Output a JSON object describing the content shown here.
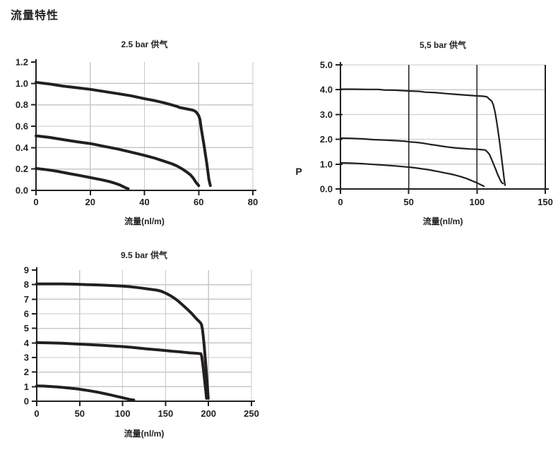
{
  "page_title": "流量特性",
  "colors": {
    "line": "#231f20",
    "axis": "#231f20",
    "grid": "#c8c8c8",
    "text": "#231f20",
    "background": "#ffffff"
  },
  "chart_data": [
    {
      "type": "line",
      "title": "2.5 bar 供气",
      "xlabel": "流量(nl/m)",
      "ylabel": "",
      "xlim": [
        0,
        80
      ],
      "ylim": [
        0,
        1.2
      ],
      "xticks": [
        0,
        20,
        40,
        60,
        80
      ],
      "xtick_labels": [
        "0",
        "20",
        "40",
        "60",
        "80"
      ],
      "yticks": [
        0,
        0.2,
        0.4,
        0.6,
        0.8,
        1.0,
        1.2
      ],
      "ytick_labels": [
        "0.0",
        "0.2",
        "0.4",
        "0.6",
        "0.8",
        "1.0",
        "1.2"
      ],
      "grid": true,
      "vgrid": "light",
      "top_gridline": false,
      "legend": "none",
      "line_width": 4,
      "series": [
        {
          "name": "upper-curve",
          "points": [
            [
              0,
              1.01
            ],
            [
              5,
              0.995
            ],
            [
              10,
              0.975
            ],
            [
              15,
              0.96
            ],
            [
              20,
              0.945
            ],
            [
              25,
              0.925
            ],
            [
              30,
              0.905
            ],
            [
              35,
              0.885
            ],
            [
              40,
              0.858
            ],
            [
              44,
              0.838
            ],
            [
              47,
              0.82
            ],
            [
              50,
              0.8
            ],
            [
              52,
              0.785
            ],
            [
              53,
              0.775
            ],
            [
              55,
              0.765
            ],
            [
              57,
              0.755
            ],
            [
              58,
              0.75
            ],
            [
              59,
              0.735
            ],
            [
              60,
              0.7
            ],
            [
              60.5,
              0.66
            ],
            [
              61,
              0.57
            ],
            [
              62,
              0.42
            ],
            [
              63,
              0.25
            ],
            [
              63.8,
              0.1
            ],
            [
              64.3,
              0.045
            ]
          ]
        },
        {
          "name": "middle-curve",
          "points": [
            [
              0,
              0.51
            ],
            [
              5,
              0.495
            ],
            [
              10,
              0.475
            ],
            [
              15,
              0.455
            ],
            [
              20,
              0.438
            ],
            [
              25,
              0.413
            ],
            [
              30,
              0.388
            ],
            [
              35,
              0.358
            ],
            [
              40,
              0.328
            ],
            [
              44,
              0.3
            ],
            [
              47,
              0.275
            ],
            [
              50,
              0.25
            ],
            [
              52,
              0.228
            ],
            [
              54,
              0.2
            ],
            [
              56,
              0.165
            ],
            [
              57,
              0.145
            ],
            [
              58,
              0.115
            ],
            [
              59,
              0.075
            ],
            [
              60,
              0.045
            ]
          ]
        },
        {
          "name": "lower-curve",
          "points": [
            [
              0,
              0.205
            ],
            [
              4,
              0.193
            ],
            [
              8,
              0.178
            ],
            [
              12,
              0.158
            ],
            [
              16,
              0.14
            ],
            [
              20,
              0.12
            ],
            [
              24,
              0.1
            ],
            [
              27,
              0.083
            ],
            [
              29,
              0.068
            ],
            [
              31,
              0.05
            ],
            [
              33,
              0.025
            ],
            [
              34,
              0.015
            ]
          ]
        }
      ]
    },
    {
      "type": "line",
      "title": "5,5 bar 供气",
      "xlabel": "流量(nl/m)",
      "ylabel": "P",
      "xlim": [
        0,
        150
      ],
      "ylim": [
        0,
        5
      ],
      "xticks": [
        0,
        50,
        100,
        150
      ],
      "xtick_labels": [
        "0",
        "50",
        "100",
        "150"
      ],
      "yticks": [
        0,
        1,
        2,
        3,
        4,
        5
      ],
      "ytick_labels": [
        "0.0",
        "1.0",
        "2.0",
        "3.0",
        "4.0",
        "5.0"
      ],
      "grid": true,
      "vgrid": "dark",
      "top_gridline": true,
      "legend": "none",
      "line_width": 2.2,
      "series": [
        {
          "name": "upper-curve",
          "points": [
            [
              0,
              4.02
            ],
            [
              10,
              4.02
            ],
            [
              20,
              4.01
            ],
            [
              28,
              4.01
            ],
            [
              32,
              3.99
            ],
            [
              40,
              3.98
            ],
            [
              50,
              3.95
            ],
            [
              58,
              3.93
            ],
            [
              62,
              3.9
            ],
            [
              70,
              3.88
            ],
            [
              78,
              3.84
            ],
            [
              85,
              3.81
            ],
            [
              92,
              3.78
            ],
            [
              100,
              3.75
            ],
            [
              104,
              3.74
            ],
            [
              107,
              3.72
            ],
            [
              108,
              3.68
            ],
            [
              109,
              3.62
            ],
            [
              110,
              3.58
            ],
            [
              111,
              3.52
            ],
            [
              112,
              3.38
            ],
            [
              113,
              3.15
            ],
            [
              114,
              2.85
            ],
            [
              115,
              2.5
            ],
            [
              116,
              2.1
            ],
            [
              117,
              1.7
            ],
            [
              118,
              1.25
            ],
            [
              119,
              0.8
            ],
            [
              120,
              0.35
            ],
            [
              120.5,
              0.15
            ]
          ]
        },
        {
          "name": "middle-curve",
          "points": [
            [
              0,
              2.05
            ],
            [
              8,
              2.04
            ],
            [
              16,
              2.02
            ],
            [
              24,
              1.99
            ],
            [
              32,
              1.97
            ],
            [
              40,
              1.95
            ],
            [
              48,
              1.92
            ],
            [
              50,
              1.9
            ],
            [
              55,
              1.88
            ],
            [
              60,
              1.85
            ],
            [
              65,
              1.8
            ],
            [
              70,
              1.76
            ],
            [
              75,
              1.72
            ],
            [
              80,
              1.68
            ],
            [
              85,
              1.65
            ],
            [
              90,
              1.63
            ],
            [
              95,
              1.61
            ],
            [
              100,
              1.6
            ],
            [
              104,
              1.58
            ],
            [
              106,
              1.57
            ],
            [
              107,
              1.52
            ],
            [
              108,
              1.47
            ],
            [
              109,
              1.4
            ],
            [
              110,
              1.28
            ],
            [
              111,
              1.15
            ],
            [
              112,
              1.02
            ],
            [
              113,
              0.88
            ],
            [
              114,
              0.75
            ],
            [
              115,
              0.6
            ],
            [
              116,
              0.48
            ],
            [
              117,
              0.36
            ],
            [
              118,
              0.27
            ],
            [
              119,
              0.22
            ]
          ]
        },
        {
          "name": "lower-curve",
          "points": [
            [
              0,
              1.05
            ],
            [
              8,
              1.04
            ],
            [
              16,
              1.02
            ],
            [
              24,
              0.99
            ],
            [
              32,
              0.96
            ],
            [
              40,
              0.93
            ],
            [
              48,
              0.89
            ],
            [
              52,
              0.87
            ],
            [
              56,
              0.84
            ],
            [
              60,
              0.81
            ],
            [
              64,
              0.78
            ],
            [
              68,
              0.74
            ],
            [
              72,
              0.7
            ],
            [
              76,
              0.65
            ],
            [
              80,
              0.61
            ],
            [
              84,
              0.56
            ],
            [
              88,
              0.5
            ],
            [
              92,
              0.43
            ],
            [
              95,
              0.36
            ],
            [
              98,
              0.29
            ],
            [
              100,
              0.25
            ],
            [
              102,
              0.19
            ],
            [
              104,
              0.14
            ],
            [
              105,
              0.11
            ]
          ]
        }
      ]
    },
    {
      "type": "line",
      "title": "9.5 bar 供气",
      "xlabel": "流量(nl/m)",
      "ylabel": "",
      "xlim": [
        0,
        250
      ],
      "ylim": [
        0,
        9
      ],
      "xticks": [
        0,
        50,
        100,
        150,
        200,
        250
      ],
      "xtick_labels": [
        "0",
        "50",
        "100",
        "150",
        "200",
        "250"
      ],
      "yticks": [
        0,
        1,
        2,
        3,
        4,
        5,
        6,
        7,
        8,
        9
      ],
      "ytick_labels": [
        "0",
        "1",
        "2",
        "3",
        "4",
        "5",
        "6",
        "7",
        "8",
        "9"
      ],
      "grid": true,
      "vgrid": "light",
      "top_gridline": false,
      "legend": "none",
      "line_width": 4,
      "series": [
        {
          "name": "upper-curve",
          "points": [
            [
              0,
              8.05
            ],
            [
              15,
              8.05
            ],
            [
              30,
              8.05
            ],
            [
              45,
              8.03
            ],
            [
              60,
              8.0
            ],
            [
              75,
              7.97
            ],
            [
              90,
              7.93
            ],
            [
              100,
              7.9
            ],
            [
              110,
              7.85
            ],
            [
              120,
              7.78
            ],
            [
              130,
              7.7
            ],
            [
              140,
              7.62
            ],
            [
              145,
              7.55
            ],
            [
              150,
              7.42
            ],
            [
              155,
              7.27
            ],
            [
              160,
              7.08
            ],
            [
              165,
              6.86
            ],
            [
              170,
              6.6
            ],
            [
              175,
              6.33
            ],
            [
              180,
              6.05
            ],
            [
              183,
              5.85
            ],
            [
              186,
              5.65
            ],
            [
              189,
              5.48
            ],
            [
              191,
              5.35
            ],
            [
              192,
              5.22
            ],
            [
              193,
              4.9
            ],
            [
              194,
              4.4
            ],
            [
              195,
              3.8
            ],
            [
              196,
              3.1
            ],
            [
              197,
              2.35
            ],
            [
              198,
              1.55
            ],
            [
              199,
              0.75
            ],
            [
              199.7,
              0.2
            ]
          ]
        },
        {
          "name": "middle-curve",
          "points": [
            [
              0,
              4.02
            ],
            [
              15,
              4.0
            ],
            [
              30,
              3.98
            ],
            [
              45,
              3.93
            ],
            [
              60,
              3.89
            ],
            [
              75,
              3.84
            ],
            [
              90,
              3.79
            ],
            [
              100,
              3.75
            ],
            [
              110,
              3.7
            ],
            [
              120,
              3.64
            ],
            [
              130,
              3.58
            ],
            [
              140,
              3.53
            ],
            [
              150,
              3.48
            ],
            [
              158,
              3.43
            ],
            [
              165,
              3.4
            ],
            [
              172,
              3.36
            ],
            [
              178,
              3.32
            ],
            [
              183,
              3.3
            ],
            [
              188,
              3.28
            ],
            [
              191,
              3.26
            ],
            [
              192,
              3.1
            ],
            [
              193,
              2.7
            ],
            [
              194,
              2.2
            ],
            [
              195,
              1.7
            ],
            [
              196,
              1.15
            ],
            [
              197,
              0.6
            ],
            [
              197.7,
              0.2
            ]
          ]
        },
        {
          "name": "lower-curve",
          "points": [
            [
              0,
              1.05
            ],
            [
              8,
              1.04
            ],
            [
              16,
              1.01
            ],
            [
              24,
              0.98
            ],
            [
              32,
              0.94
            ],
            [
              40,
              0.89
            ],
            [
              48,
              0.84
            ],
            [
              56,
              0.77
            ],
            [
              64,
              0.69
            ],
            [
              72,
              0.61
            ],
            [
              80,
              0.51
            ],
            [
              86,
              0.43
            ],
            [
              92,
              0.35
            ],
            [
              98,
              0.27
            ],
            [
              103,
              0.2
            ],
            [
              107,
              0.14
            ],
            [
              110,
              0.1
            ],
            [
              113,
              0.08
            ]
          ]
        }
      ]
    }
  ]
}
